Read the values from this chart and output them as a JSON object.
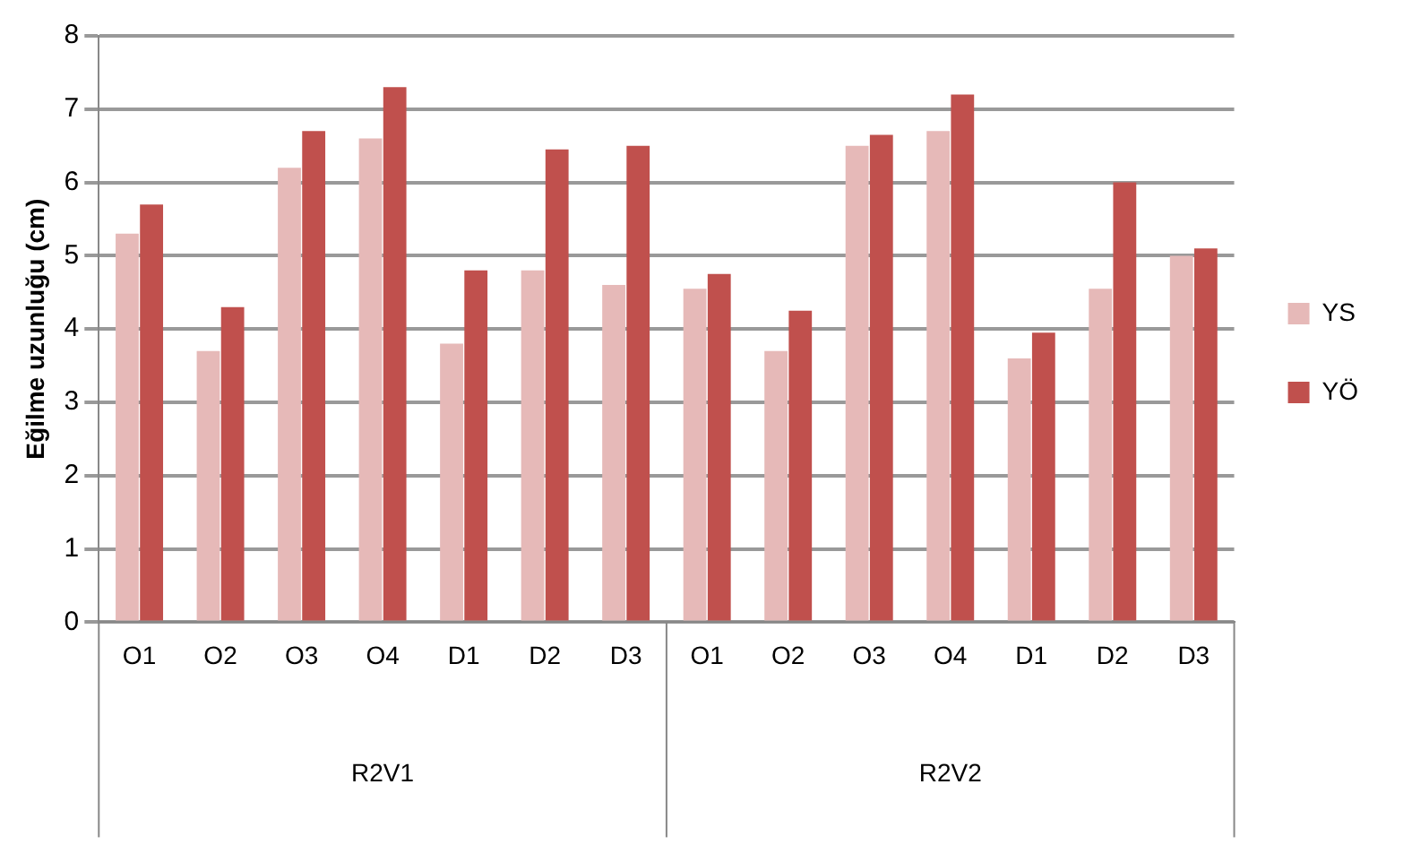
{
  "chart_data": {
    "type": "bar",
    "ylabel": "Eğilme uzunluğu (cm)",
    "categories": [
      "O1",
      "O2",
      "O3",
      "O4",
      "D1",
      "D2",
      "D3",
      "O1",
      "O2",
      "O3",
      "O4",
      "D1",
      "D2",
      "D3"
    ],
    "series": [
      {
        "name": "YS",
        "color": "#e6b9b8",
        "values": [
          5.3,
          3.7,
          6.2,
          6.6,
          3.8,
          4.8,
          4.6,
          4.55,
          3.7,
          6.5,
          6.7,
          3.6,
          4.55,
          5.0
        ]
      },
      {
        "name": "YÖ",
        "color": "#c0504d",
        "values": [
          5.7,
          4.3,
          6.7,
          7.3,
          4.8,
          6.45,
          6.5,
          4.75,
          4.25,
          6.65,
          7.2,
          3.95,
          6.0,
          5.1
        ]
      }
    ],
    "annotations": [
      "R2V1",
      "R2V2"
    ],
    "ylim": [
      0,
      8
    ],
    "yticks": [
      0,
      1,
      2,
      3,
      4,
      5,
      6,
      7,
      8
    ],
    "grid": "y",
    "legend": "right"
  }
}
